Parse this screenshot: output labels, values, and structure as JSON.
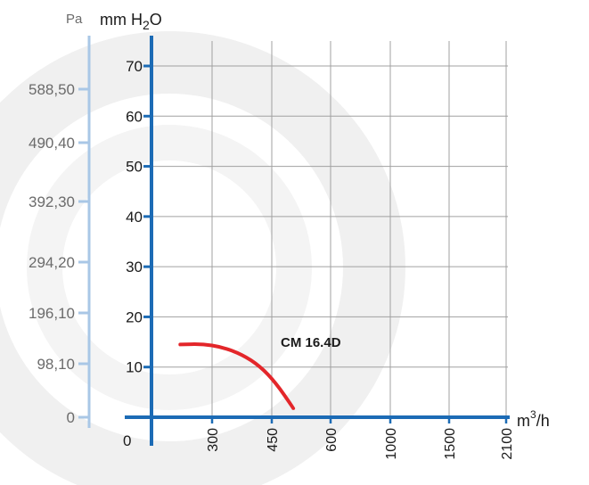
{
  "chart_data": {
    "type": "line",
    "title": "",
    "y_unit_left": "Pa",
    "y_unit_main": "mm H2O",
    "x_unit": "m3/h",
    "y_ticks_mm": [
      "0",
      "10",
      "20",
      "30",
      "40",
      "50",
      "60",
      "70"
    ],
    "y_ticks_pa": [
      "0",
      "98,10",
      "196,10",
      "294,20",
      "392,30",
      "490,40",
      "588,50"
    ],
    "x_ticks": [
      "300",
      "450",
      "600",
      "1000",
      "1500",
      "2100"
    ],
    "ylim": [
      0,
      72
    ],
    "grid": true,
    "series": [
      {
        "name": "CM 16.4D",
        "color": "#e3262a",
        "x_tick_positions": [
          0.3,
          0.8,
          1.4,
          2.0,
          2.5,
          2.75
        ],
        "x": [
          220,
          275,
          325,
          375,
          420,
          460,
          505
        ],
        "y": [
          14.5,
          14.6,
          14.0,
          12.5,
          10.2,
          6.9,
          1.8
        ]
      }
    ]
  },
  "colors": {
    "axis": "#1c6bb5",
    "pa_axis": "#a9c7e6",
    "grid": "#a0a0a0",
    "background_glow": "#e8e8e8"
  }
}
